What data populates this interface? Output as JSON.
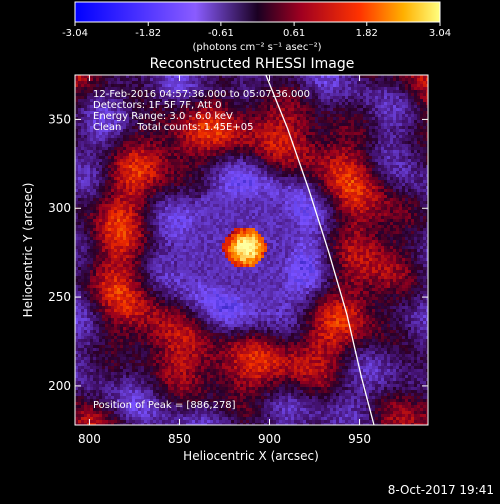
{
  "chart_data": {
    "type": "heatmap",
    "title": "Reconstructed RHESSI Image",
    "xlabel": "Heliocentric X (arcsec)",
    "ylabel": "Heliocentric Y (arcsec)",
    "xlim": [
      792,
      988
    ],
    "ylim": [
      178,
      375
    ],
    "x_ticks": [
      800,
      850,
      900,
      950
    ],
    "y_ticks": [
      200,
      250,
      300,
      350
    ],
    "grid": false,
    "annotations": [
      "12-Feb-2016 04:57:36.000 to 05:07:36.000",
      "Detectors: 1F 5F 7F, Att 0",
      "Energy Range: 3.0 - 6.0 keV",
      "Clean     Total counts: 1.45E+05",
      "Position of Peak = [886,278]"
    ],
    "peak_position": [
      886,
      278
    ],
    "limb_curve": [
      [
        898,
        375
      ],
      [
        910,
        345
      ],
      [
        922,
        310
      ],
      [
        933,
        275
      ],
      [
        943,
        240
      ],
      [
        951,
        205
      ],
      [
        958,
        178
      ]
    ],
    "colorbar": {
      "min": -3.04,
      "max": 3.04,
      "tick_labels": [
        "-3.04",
        "-1.82",
        "-0.61",
        "0.61",
        "1.82",
        "3.04"
      ],
      "unit_label": "(photons cm⁻² s⁻¹ asec⁻²)"
    }
  },
  "footer": {
    "timestamp": "8-Oct-2017 19:41"
  },
  "colors": {
    "background": "#000000",
    "foreground": "#ffffff"
  }
}
